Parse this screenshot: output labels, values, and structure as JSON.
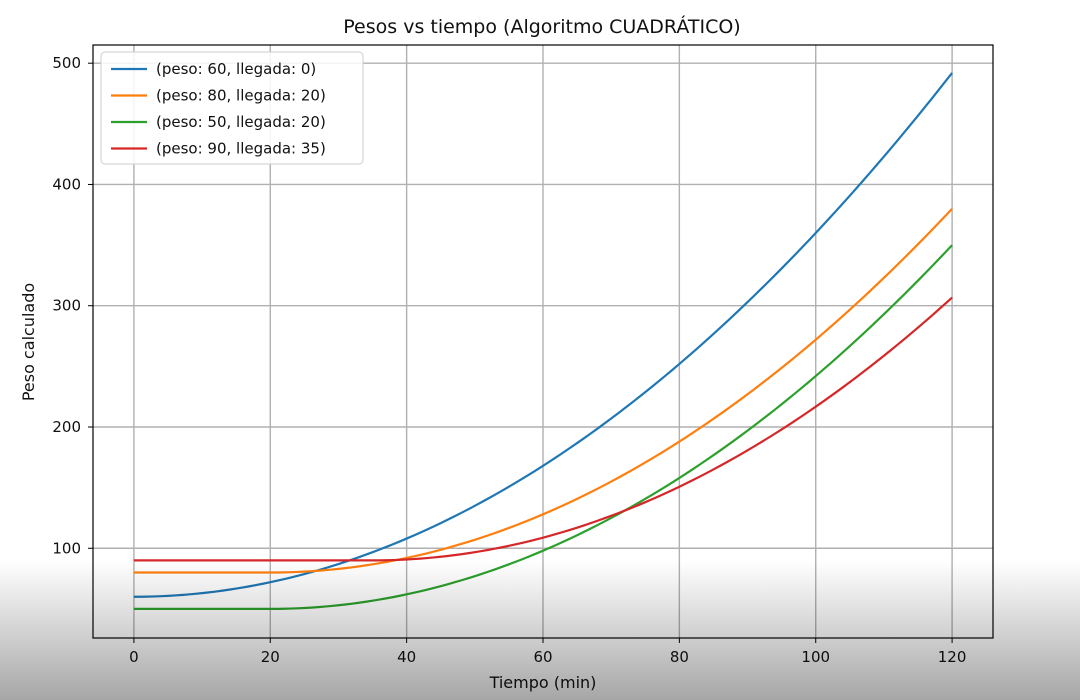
{
  "chart_data": {
    "type": "line",
    "title": "Pesos vs tiempo (Algoritmo CUADRÁTICO)",
    "xlabel": "Tiempo (min)",
    "ylabel": "Peso calculado",
    "xlim": [
      -6,
      126
    ],
    "ylim": [
      26,
      515
    ],
    "xticks": [
      0,
      20,
      40,
      60,
      80,
      100,
      120
    ],
    "yticks": [
      100,
      200,
      300,
      400,
      500
    ],
    "grid": true,
    "legend_position": "top-left",
    "series": [
      {
        "name": "(peso: 60, llegada: 0)",
        "color": "#1f77b4",
        "base": 60,
        "arrival": 0,
        "coef": 0.03
      },
      {
        "name": "(peso: 80, llegada: 20)",
        "color": "#ff7f0e",
        "base": 80,
        "arrival": 20,
        "coef": 0.03
      },
      {
        "name": "(peso: 50, llegada: 20)",
        "color": "#2ca02c",
        "base": 50,
        "arrival": 20,
        "coef": 0.03
      },
      {
        "name": "(peso: 90, llegada: 35)",
        "color": "#d62728",
        "base": 90,
        "arrival": 35,
        "coef": 0.03
      }
    ],
    "x_range": [
      0,
      120
    ],
    "samples": 121
  }
}
